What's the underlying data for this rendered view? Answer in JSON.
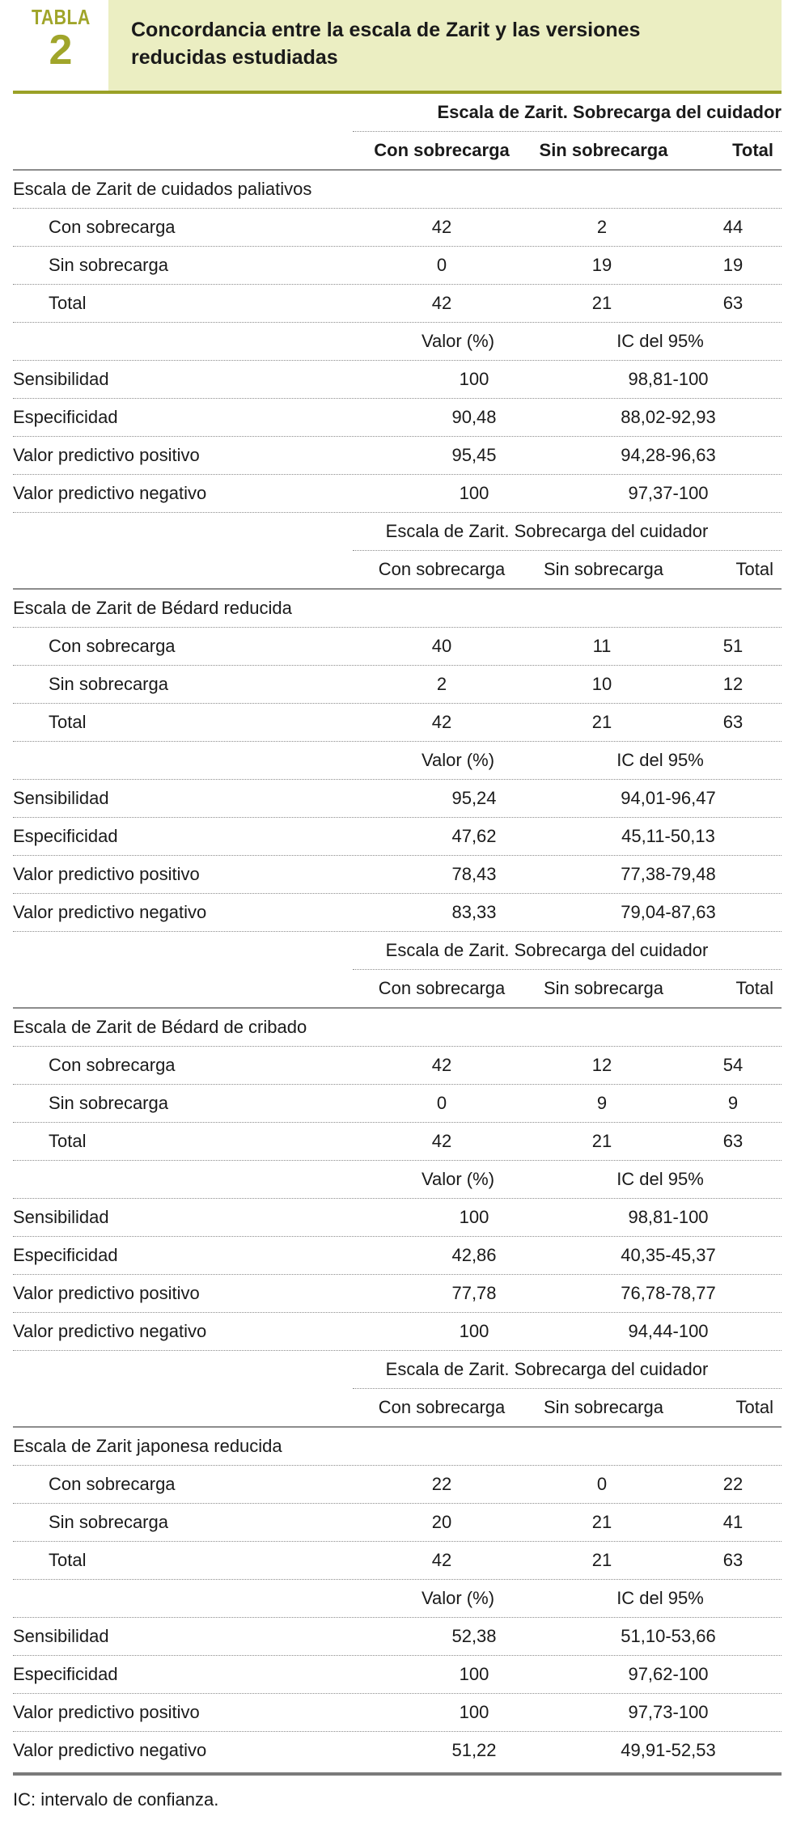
{
  "header": {
    "tabla_label": "TABLA",
    "tabla_number": "2",
    "title_line1": "Concordancia entre la escala de Zarit y las versiones",
    "title_line2": "reducidas estudiadas"
  },
  "sections": [
    {
      "super_header": "Escala de Zarit. Sobrecarga del cuidador",
      "col_headers": [
        "Con sobrecarga",
        "Sin sobrecarga",
        "Total"
      ],
      "scale_name": "Escala de Zarit de cuidados paliativos",
      "rows": [
        {
          "label": "Con sobrecarga",
          "con": "42",
          "sin": "2",
          "total": "44"
        },
        {
          "label": "Sin sobrecarga",
          "con": "0",
          "sin": "19",
          "total": "19"
        },
        {
          "label": "Total",
          "con": "42",
          "sin": "21",
          "total": "63"
        }
      ],
      "stats_headers": [
        "Valor (%)",
        "IC del 95%"
      ],
      "stats": [
        {
          "label": "Sensibilidad",
          "valor": "100",
          "ic": "98,81-100"
        },
        {
          "label": "Especificidad",
          "valor": "90,48",
          "ic": "88,02-92,93"
        },
        {
          "label": "Valor predictivo positivo",
          "valor": "95,45",
          "ic": "94,28-96,63"
        },
        {
          "label": "Valor predictivo negativo",
          "valor": "100",
          "ic": "97,37-100"
        }
      ]
    },
    {
      "super_header": "Escala de Zarit. Sobrecarga del cuidador",
      "col_headers": [
        "Con sobrecarga",
        "Sin sobrecarga",
        "Total"
      ],
      "scale_name": "Escala de Zarit de Bédard reducida",
      "rows": [
        {
          "label": "Con sobrecarga",
          "con": "40",
          "sin": "11",
          "total": "51"
        },
        {
          "label": "Sin sobrecarga",
          "con": "2",
          "sin": "10",
          "total": "12"
        },
        {
          "label": "Total",
          "con": "42",
          "sin": "21",
          "total": "63"
        }
      ],
      "stats_headers": [
        "Valor (%)",
        "IC del 95%"
      ],
      "stats": [
        {
          "label": "Sensibilidad",
          "valor": "95,24",
          "ic": "94,01-96,47"
        },
        {
          "label": "Especificidad",
          "valor": "47,62",
          "ic": "45,11-50,13"
        },
        {
          "label": "Valor predictivo positivo",
          "valor": "78,43",
          "ic": "77,38-79,48"
        },
        {
          "label": "Valor predictivo negativo",
          "valor": "83,33",
          "ic": "79,04-87,63"
        }
      ]
    },
    {
      "super_header": "Escala de Zarit. Sobrecarga del cuidador",
      "col_headers": [
        "Con sobrecarga",
        "Sin sobrecarga",
        "Total"
      ],
      "scale_name": "Escala de Zarit de Bédard de cribado",
      "rows": [
        {
          "label": "Con sobrecarga",
          "con": "42",
          "sin": "12",
          "total": "54"
        },
        {
          "label": "Sin sobrecarga",
          "con": "0",
          "sin": "9",
          "total": "9"
        },
        {
          "label": "Total",
          "con": "42",
          "sin": "21",
          "total": "63"
        }
      ],
      "stats_headers": [
        "Valor (%)",
        "IC del 95%"
      ],
      "stats": [
        {
          "label": "Sensibilidad",
          "valor": "100",
          "ic": "98,81-100"
        },
        {
          "label": "Especificidad",
          "valor": "42,86",
          "ic": "40,35-45,37"
        },
        {
          "label": "Valor predictivo positivo",
          "valor": "77,78",
          "ic": "76,78-78,77"
        },
        {
          "label": "Valor predictivo negativo",
          "valor": "100",
          "ic": "94,44-100"
        }
      ]
    },
    {
      "super_header": "Escala de Zarit. Sobrecarga del cuidador",
      "col_headers": [
        "Con sobrecarga",
        "Sin sobrecarga",
        "Total"
      ],
      "scale_name": "Escala de Zarit japonesa reducida",
      "rows": [
        {
          "label": "Con sobrecarga",
          "con": "22",
          "sin": "0",
          "total": "22"
        },
        {
          "label": "Sin sobrecarga",
          "con": "20",
          "sin": "21",
          "total": "41"
        },
        {
          "label": "Total",
          "con": "42",
          "sin": "21",
          "total": "63"
        }
      ],
      "stats_headers": [
        "Valor (%)",
        "IC del 95%"
      ],
      "stats": [
        {
          "label": "Sensibilidad",
          "valor": "52,38",
          "ic": "51,10-53,66"
        },
        {
          "label": "Especificidad",
          "valor": "100",
          "ic": "97,62-100"
        },
        {
          "label": "Valor predictivo positivo",
          "valor": "100",
          "ic": "97,73-100"
        },
        {
          "label": "Valor predictivo negativo",
          "valor": "51,22",
          "ic": "49,91-52,53"
        }
      ]
    }
  ],
  "footnote": "IC: intervalo de confianza."
}
